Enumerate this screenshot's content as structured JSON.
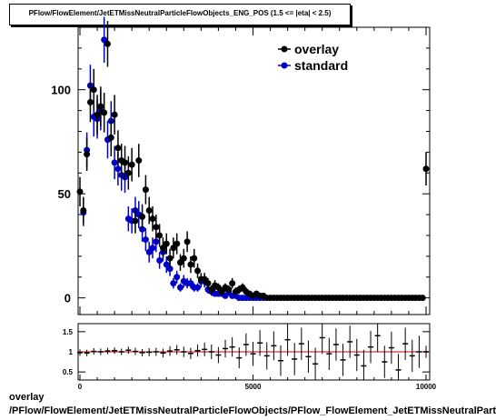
{
  "chart_data": {
    "type": "scatter",
    "title": "PFlow/FlowElement/JetETMissNeutralParticleFlowObjects_ENG_POS (1.5 <= |eta| < 2.5)",
    "xlim": [
      0,
      10000
    ],
    "ylim": [
      -8,
      130
    ],
    "main_yticks": [
      "0",
      "50",
      "100"
    ],
    "xticks": [
      "0",
      "5000",
      "10000"
    ],
    "ratio_ylim": [
      0.3,
      1.7
    ],
    "ratio_yticks": [
      "0.5",
      "1",
      "1.5"
    ],
    "legend": {
      "placement": "top-right",
      "entries": [
        "overlay",
        "standard"
      ]
    },
    "series": [
      {
        "name": "overlay",
        "color": "#000000",
        "x": [
          0,
          100,
          200,
          300,
          400,
          500,
          600,
          700,
          800,
          900,
          1000,
          1100,
          1200,
          1300,
          1400,
          1500,
          1600,
          1700,
          1800,
          1900,
          2000,
          2100,
          2200,
          2300,
          2400,
          2500,
          2600,
          2700,
          2800,
          2900,
          3000,
          3100,
          3200,
          3300,
          3400,
          3500,
          3600,
          3700,
          3800,
          3900,
          4000,
          4100,
          4200,
          4300,
          4400,
          4500,
          4600,
          4700,
          4800,
          4900,
          5000,
          5100,
          5200,
          5300,
          5400,
          5500,
          5600,
          5700,
          5800,
          5900,
          6000,
          6100,
          6200,
          6300,
          6400,
          6500,
          6600,
          6700,
          6800,
          6900,
          7000,
          7100,
          7200,
          7300,
          7400,
          7500,
          7600,
          7700,
          7800,
          7900,
          8000,
          8100,
          8200,
          8300,
          8400,
          8500,
          8600,
          8700,
          8800,
          8900,
          9000,
          9100,
          9200,
          9300,
          9400,
          9500,
          9600,
          9700,
          9800,
          9900,
          10000
        ],
        "y": [
          51,
          42,
          69,
          94,
          100,
          88,
          92,
          89,
          122,
          77,
          88,
          72,
          66,
          65,
          60,
          64,
          37,
          66,
          39,
          52,
          42,
          38,
          34,
          30,
          24,
          26,
          19,
          24,
          26,
          17,
          19,
          27,
          16,
          19,
          13,
          9,
          9,
          7,
          4,
          6,
          5,
          3,
          5,
          4,
          7,
          3,
          4,
          5,
          3,
          2,
          1,
          2,
          1,
          1,
          0,
          0,
          0,
          0,
          0,
          0,
          0,
          0,
          0,
          0,
          0,
          0,
          0,
          0,
          0,
          0,
          0,
          0,
          0,
          0,
          0,
          0,
          0,
          0,
          0,
          0,
          0,
          0,
          0,
          0,
          0,
          0,
          0,
          0,
          0,
          0,
          0,
          0,
          0,
          0,
          0,
          0,
          0,
          0,
          0,
          0,
          62
        ],
        "yerr": [
          7,
          6.5,
          8,
          9.5,
          10,
          9.5,
          9.5,
          9.5,
          11,
          9,
          9.5,
          8.5,
          8,
          8,
          8,
          8,
          6,
          8,
          6,
          7,
          6.5,
          6,
          6,
          5.5,
          5,
          5,
          4.5,
          5,
          5,
          4,
          4.5,
          5,
          4,
          4.5,
          3.5,
          3,
          3,
          2.5,
          2,
          2.5,
          2,
          2,
          2,
          2,
          2.5,
          2,
          2,
          2,
          2,
          1.5,
          1,
          1.5,
          1,
          1,
          0,
          0,
          0,
          0,
          0,
          0,
          0,
          0,
          0,
          0,
          0,
          0,
          0,
          0,
          0,
          0,
          0,
          0,
          0,
          0,
          0,
          0,
          0,
          0,
          0,
          0,
          0,
          0,
          0,
          0,
          0,
          0,
          0,
          0,
          0,
          0,
          0,
          0,
          0,
          0,
          0,
          0,
          0,
          0,
          0,
          0,
          8
        ]
      },
      {
        "name": "standard",
        "color": "#0000cc",
        "x": [
          100,
          200,
          300,
          400,
          500,
          600,
          700,
          800,
          900,
          1000,
          1100,
          1200,
          1300,
          1400,
          1500,
          1600,
          1700,
          1800,
          1900,
          2000,
          2100,
          2200,
          2300,
          2400,
          2500,
          2600,
          2700,
          2800,
          2900,
          3000,
          3100,
          3200,
          3300,
          3400,
          3500,
          3600,
          3700,
          3800,
          3900,
          4000,
          4100,
          4200,
          4300,
          4400,
          4500,
          4600,
          4700,
          4800,
          4900,
          5000,
          5100,
          5200,
          5300
        ],
        "y": [
          41,
          71,
          102,
          87,
          86,
          90,
          124,
          76,
          85,
          65,
          62,
          59,
          58,
          38,
          37,
          42,
          40,
          33,
          28,
          22,
          24,
          27,
          18,
          22,
          16,
          14,
          7,
          10,
          5,
          8,
          7,
          7,
          5,
          5,
          8,
          8,
          4,
          3,
          2,
          2,
          2,
          1,
          3,
          1,
          1,
          0,
          0,
          0,
          0,
          0,
          0,
          0,
          0
        ],
        "yerr": [
          6.5,
          8.5,
          10,
          9.5,
          9.5,
          9.5,
          11,
          9,
          9.5,
          8,
          8,
          7.5,
          7.5,
          6,
          6,
          6.5,
          6.5,
          6,
          5.5,
          5,
          5,
          5,
          4,
          4.5,
          4,
          3.5,
          2.5,
          3,
          2,
          3,
          2.5,
          2.5,
          2,
          2,
          3,
          3,
          2,
          2,
          1.5,
          1.5,
          1.5,
          1,
          2,
          1,
          1,
          0,
          0,
          0,
          0,
          0,
          0,
          0,
          0
        ]
      }
    ],
    "ratio": {
      "x": [
        0,
        200,
        400,
        600,
        800,
        1000,
        1200,
        1400,
        1600,
        1800,
        2000,
        2200,
        2400,
        2600,
        2800,
        3000,
        3200,
        3400,
        3600,
        3800,
        4000,
        4200,
        4400,
        4600,
        4800,
        5000,
        5200,
        5400,
        5600,
        5800,
        6000,
        6200,
        6400,
        6600,
        6800,
        7000,
        7200,
        7400,
        7600,
        7800,
        8000,
        8200,
        8400,
        8600,
        8800,
        9000,
        9200,
        9400,
        9600,
        9800,
        10000
      ],
      "y": [
        0.98,
        0.97,
        1.01,
        1.0,
        1.02,
        1.03,
        1.0,
        1.04,
        1.01,
        0.98,
        0.99,
        1.0,
        0.97,
        1.02,
        1.05,
        1.0,
        0.96,
        1.03,
        1.06,
        1.0,
        0.92,
        1.08,
        1.12,
        0.85,
        1.18,
        0.95,
        1.22,
        0.9,
        1.15,
        0.78,
        1.3,
        0.82,
        1.2,
        0.88,
        0.7,
        1.35,
        0.95,
        1.18,
        0.8,
        1.25,
        0.92,
        0.65,
        1.12,
        1.4,
        0.75,
        1.1,
        0.55,
        1.2,
        0.9,
        1.0,
        1.0
      ],
      "yerr": [
        0.08,
        0.08,
        0.08,
        0.08,
        0.08,
        0.08,
        0.08,
        0.09,
        0.09,
        0.09,
        0.1,
        0.1,
        0.11,
        0.12,
        0.12,
        0.13,
        0.14,
        0.15,
        0.17,
        0.18,
        0.2,
        0.22,
        0.24,
        0.26,
        0.28,
        0.3,
        0.32,
        0.34,
        0.36,
        0.38,
        0.4,
        0.4,
        0.4,
        0.4,
        0.4,
        0.4,
        0.4,
        0.4,
        0.4,
        0.4,
        0.4,
        0.4,
        0.4,
        0.4,
        0.4,
        0.4,
        0.4,
        0.4,
        0.4,
        0.4,
        0.15
      ]
    }
  },
  "footer": {
    "line1": "overlay",
    "line2": "/PFlow/FlowElement/JetETMissNeutralParticleFlowObjects/PFlow_FlowElement_JetETMissNeutralParticleFlowObjects_ENG_POS"
  }
}
